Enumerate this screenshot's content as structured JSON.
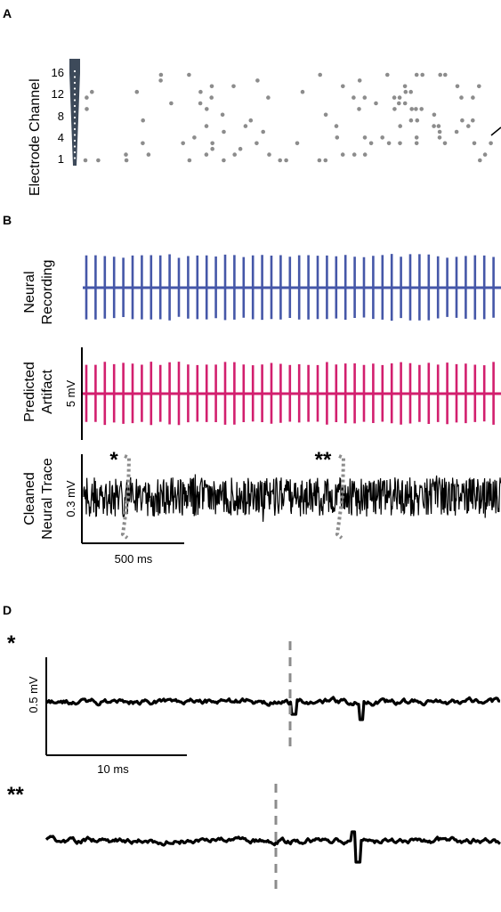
{
  "panels": {
    "a": "A",
    "b": "B",
    "d": "D"
  },
  "panel_a": {
    "ylabel": "Electrode Channel",
    "ticks": [
      "16",
      "12",
      "8",
      "4",
      "1"
    ]
  },
  "panel_b": {
    "neural_label_1": "Neural",
    "neural_label_2": "Recording",
    "artifact_label_1": "Predicted",
    "artifact_label_2": "Artifact",
    "artifact_scale": "5 mV",
    "cleaned_label_1": "Cleaned",
    "cleaned_label_2": "Neural Trace",
    "cleaned_scale": "0.3 mV",
    "time_scale": "500 ms",
    "marker_1": "*",
    "marker_2": "**"
  },
  "panel_d": {
    "marker_1": "*",
    "marker_2": "**",
    "amp_scale": "0.5 mV",
    "time_scale": "10 ms"
  },
  "colors": {
    "neural": "#4557a8",
    "artifact": "#d21f6e",
    "dots": "#8c8c8c",
    "electrode": "#3d4a5a",
    "trace": "#000000"
  },
  "chart_data": [
    {
      "type": "scatter",
      "ylabel": "Electrode Channel",
      "ylim": [
        1,
        16
      ],
      "yticks": [
        1,
        4,
        8,
        12,
        16
      ],
      "grid": false
    },
    {
      "type": "line",
      "series": [
        {
          "name": "Neural Recording"
        },
        {
          "name": "Predicted Artifact"
        },
        {
          "name": "Cleaned Neural Trace"
        }
      ],
      "scale_bars": [
        "5 mV",
        "0.3 mV",
        "500 ms"
      ],
      "grid": false
    },
    {
      "type": "line",
      "scale_bars": [
        "0.5 mV",
        "10 ms"
      ],
      "grid": false
    }
  ]
}
